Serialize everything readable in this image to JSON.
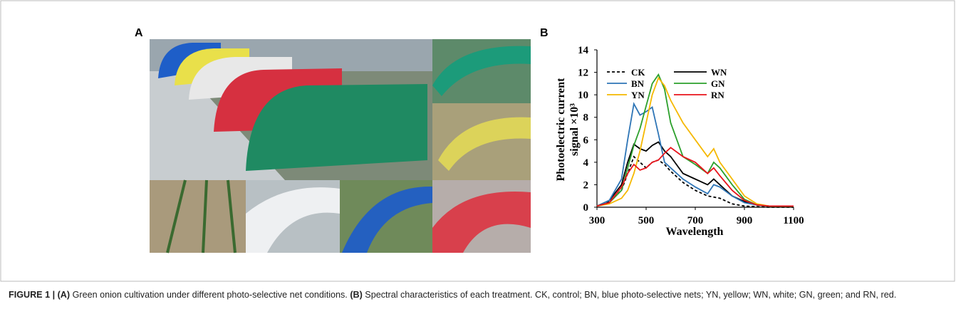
{
  "panels": {
    "a": "A",
    "b": "B"
  },
  "chart_data": {
    "type": "line",
    "x_label": "Wavelength",
    "y_label": [
      "Photoelectric current",
      "signal ×10³"
    ],
    "x": [
      300,
      350,
      400,
      425,
      450,
      475,
      500,
      525,
      550,
      575,
      600,
      650,
      700,
      750,
      775,
      800,
      850,
      900,
      950,
      1000,
      1100
    ],
    "xlim": [
      300,
      1100
    ],
    "xticks": [
      300,
      500,
      700,
      900,
      1100
    ],
    "ylim": [
      0,
      14
    ],
    "yticks": [
      0,
      2,
      4,
      6,
      8,
      10,
      12,
      14
    ],
    "series": [
      {
        "name": "CK",
        "color": "#000000",
        "dash": true,
        "values": [
          0.1,
          0.5,
          1.5,
          3.0,
          4.5,
          4.0,
          3.5,
          4.0,
          4.2,
          3.8,
          3.2,
          2.2,
          1.5,
          1.0,
          0.9,
          0.8,
          0.3,
          0.1,
          0.05,
          0,
          0
        ]
      },
      {
        "name": "WN",
        "color": "#000000",
        "values": [
          0.1,
          0.6,
          2.0,
          4.0,
          5.6,
          5.2,
          5.0,
          5.5,
          5.8,
          5.0,
          4.5,
          3.0,
          2.5,
          2.0,
          2.5,
          2.0,
          1.0,
          0.5,
          0.2,
          0.1,
          0.1
        ]
      },
      {
        "name": "BN",
        "color": "#2e75b6",
        "values": [
          0.1,
          0.6,
          2.5,
          6.0,
          9.2,
          8.2,
          8.5,
          8.9,
          6.5,
          4.0,
          3.5,
          2.5,
          1.8,
          1.2,
          2.0,
          1.8,
          1.0,
          0.4,
          0.2,
          0.1,
          0.1
        ]
      },
      {
        "name": "GN",
        "color": "#2ca02c",
        "values": [
          0.1,
          0.4,
          1.5,
          3.5,
          5.5,
          7.0,
          9.0,
          11.0,
          11.8,
          10.5,
          7.5,
          4.5,
          3.8,
          3.0,
          4.0,
          3.5,
          2.0,
          0.7,
          0.2,
          0.1,
          0.1
        ]
      },
      {
        "name": "YN",
        "color": "#f5b800",
        "values": [
          0.1,
          0.3,
          0.8,
          1.5,
          3.0,
          5.0,
          7.5,
          10.0,
          11.5,
          10.8,
          9.5,
          7.5,
          6.0,
          4.5,
          5.2,
          4.0,
          2.5,
          1.0,
          0.3,
          0.1,
          0.1
        ]
      },
      {
        "name": "RN",
        "color": "#e8141c",
        "values": [
          0.1,
          0.4,
          1.8,
          3.0,
          3.8,
          3.3,
          3.5,
          4.0,
          4.2,
          4.8,
          5.3,
          4.5,
          4.0,
          3.0,
          3.5,
          2.8,
          1.5,
          0.6,
          0.2,
          0.1,
          0.1
        ]
      }
    ]
  },
  "caption": [
    "FIGURE 1 | ",
    "(A)",
    " Green onion cultivation under different photo-selective net conditions. ",
    "(B)",
    " Spectral characteristics of each treatment. CK, control; BN, blue photo-selective nets; YN, yellow; WN, white; GN, green; and RN, red."
  ]
}
